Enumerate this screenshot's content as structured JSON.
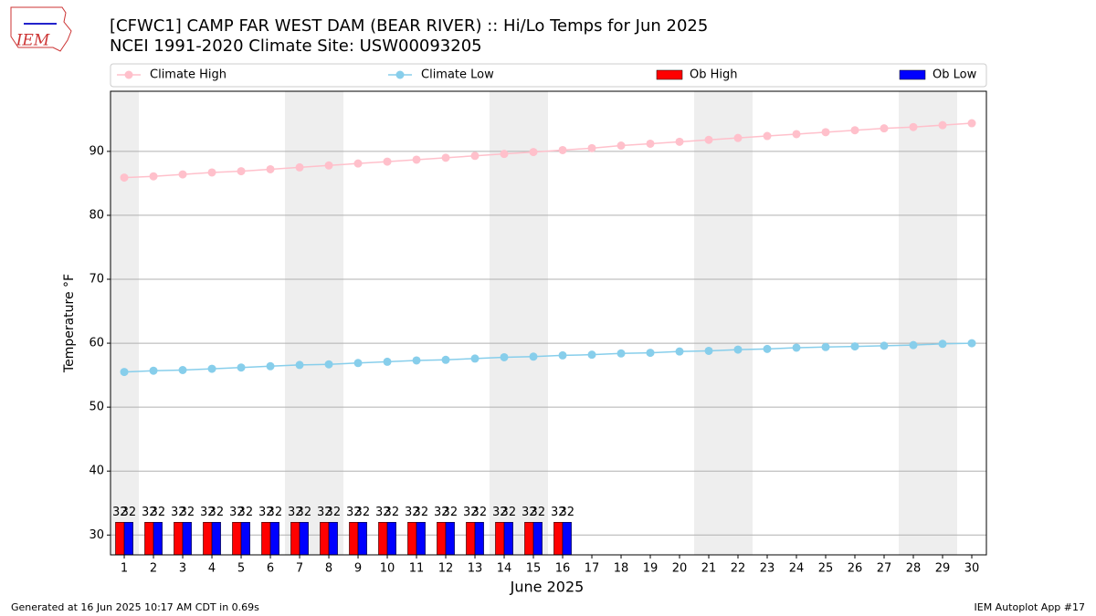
{
  "logo": "IEM",
  "footer_left": "Generated at 16 Jun 2025 10:17 AM CDT in 0.69s",
  "footer_right": "IEM Autoplot App #17",
  "chart_data": {
    "type": "line",
    "title": "[CFWC1] CAMP FAR WEST DAM (BEAR RIVER) :: Hi/Lo Temps for Jun 2025",
    "subtitle": "NCEI 1991-2020 Climate Site: USW00093205",
    "x_label": "June 2025",
    "y_label": "Temperature °F",
    "x": [
      1,
      2,
      3,
      4,
      5,
      6,
      7,
      8,
      9,
      10,
      11,
      12,
      13,
      14,
      15,
      16,
      17,
      18,
      19,
      20,
      21,
      22,
      23,
      24,
      25,
      26,
      27,
      28,
      29,
      30
    ],
    "xlim": [
      0.53,
      30.5
    ],
    "xticks": [
      1,
      2,
      3,
      4,
      5,
      6,
      7,
      8,
      9,
      10,
      11,
      12,
      13,
      14,
      15,
      16,
      17,
      18,
      19,
      20,
      21,
      22,
      23,
      24,
      25,
      26,
      27,
      28,
      29,
      30
    ],
    "ylim": [
      26.9,
      99.4
    ],
    "yticks": [
      30,
      40,
      50,
      60,
      70,
      80,
      90
    ],
    "grid": true,
    "series": [
      {
        "name": "Climate High",
        "type": "line",
        "color": "#ffc0cb",
        "values": [
          85.9,
          86.1,
          86.4,
          86.7,
          86.9,
          87.2,
          87.5,
          87.8,
          88.1,
          88.4,
          88.7,
          89.0,
          89.3,
          89.6,
          89.9,
          90.2,
          90.5,
          90.9,
          91.2,
          91.5,
          91.8,
          92.1,
          92.4,
          92.7,
          93.0,
          93.3,
          93.6,
          93.8,
          94.1,
          94.4
        ]
      },
      {
        "name": "Climate Low",
        "type": "line",
        "color": "#87ceeb",
        "values": [
          55.5,
          55.7,
          55.8,
          56.0,
          56.2,
          56.4,
          56.6,
          56.7,
          56.9,
          57.1,
          57.3,
          57.4,
          57.6,
          57.8,
          57.9,
          58.1,
          58.2,
          58.4,
          58.5,
          58.7,
          58.8,
          59.0,
          59.1,
          59.3,
          59.4,
          59.5,
          59.6,
          59.7,
          59.9,
          60.0
        ]
      },
      {
        "name": "Ob High",
        "type": "bar",
        "color": "#ff0000",
        "values": [
          32,
          32,
          32,
          32,
          32,
          32,
          32,
          32,
          32,
          32,
          32,
          32,
          32,
          32,
          32,
          32,
          null,
          null,
          null,
          null,
          null,
          null,
          null,
          null,
          null,
          null,
          null,
          null,
          null,
          null
        ]
      },
      {
        "name": "Ob Low",
        "type": "bar",
        "color": "#0000ff",
        "values": [
          32,
          32,
          32,
          32,
          32,
          32,
          32,
          32,
          32,
          32,
          32,
          32,
          32,
          32,
          32,
          32,
          null,
          null,
          null,
          null,
          null,
          null,
          null,
          null,
          null,
          null,
          null,
          null,
          null,
          null
        ]
      }
    ]
  }
}
